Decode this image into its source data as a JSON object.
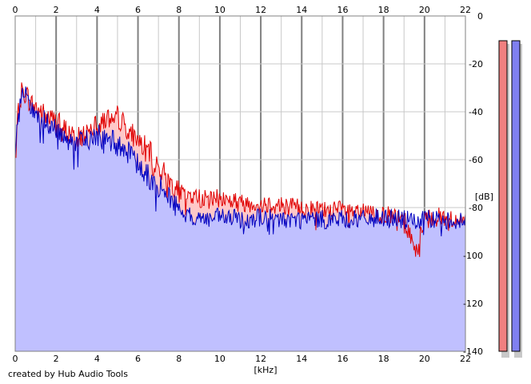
{
  "footer": {
    "credit": "created by Hub Audio Tools"
  },
  "colors": {
    "background": "#ffffff",
    "grid_minor": "#c8c8c8",
    "grid_major": "#808080",
    "left_line": "#e00000",
    "left_fill": "#ffc8c8",
    "right_line": "#0000c0",
    "right_fill": "#c0c0ff",
    "left_meter": "#f08080",
    "right_meter": "#8080f0"
  },
  "chart_data": {
    "type": "area",
    "title": "",
    "xlabel": "[kHz]",
    "ylabel": "[dB]",
    "xlim": [
      0,
      22
    ],
    "ylim": [
      -140,
      0
    ],
    "x_ticks": [
      "0",
      "2",
      "4",
      "6",
      "8",
      "10",
      "12",
      "14",
      "16",
      "18",
      "20",
      "22"
    ],
    "y_ticks": [
      "0",
      "-20",
      "-40",
      "-60",
      "-80",
      "-100",
      "-120",
      "-140"
    ],
    "grid": true,
    "series": [
      {
        "channel": "left",
        "x": [
          0,
          0.1,
          0.3,
          0.5,
          0.8,
          1.0,
          1.5,
          2.0,
          2.5,
          3.0,
          3.5,
          4.0,
          4.5,
          5.0,
          5.5,
          6.0,
          6.5,
          7.0,
          7.5,
          8.0,
          8.5,
          9.0,
          9.5,
          10.0,
          11.0,
          12.0,
          13.0,
          14.0,
          15.0,
          16.0,
          17.0,
          18.0,
          19.0,
          19.6,
          20.0,
          21.0,
          22.0
        ],
        "values": [
          -60,
          -45,
          -32,
          -32,
          -37,
          -38,
          -42,
          -44,
          -48,
          -52,
          -48,
          -43,
          -43,
          -42,
          -47,
          -52,
          -56,
          -63,
          -68,
          -74,
          -75,
          -76,
          -77,
          -76,
          -78,
          -78,
          -79,
          -80,
          -81,
          -81,
          -82,
          -83,
          -85,
          -98,
          -84,
          -84,
          -86
        ]
      },
      {
        "channel": "right",
        "x": [
          0,
          0.1,
          0.3,
          0.5,
          0.8,
          1.0,
          1.5,
          2.0,
          2.5,
          3.0,
          3.5,
          4.0,
          4.5,
          5.0,
          5.5,
          6.0,
          6.5,
          7.0,
          7.5,
          8.0,
          8.5,
          9.0,
          9.5,
          10.0,
          11.0,
          12.0,
          13.0,
          14.0,
          15.0,
          16.0,
          17.0,
          18.0,
          19.0,
          19.6,
          20.0,
          21.0,
          22.0
        ],
        "values": [
          -63,
          -47,
          -33,
          -34,
          -39,
          -41,
          -45,
          -48,
          -51,
          -53,
          -52,
          -50,
          -52,
          -53,
          -57,
          -62,
          -67,
          -71,
          -75,
          -81,
          -84,
          -84,
          -85,
          -84,
          -85,
          -84,
          -85,
          -85,
          -85,
          -85,
          -85,
          -84,
          -85,
          -86,
          -85,
          -85,
          -86
        ]
      }
    ],
    "level_meters": [
      {
        "channel": "left",
        "color": "#f08080"
      },
      {
        "channel": "right",
        "color": "#8080f0"
      }
    ]
  }
}
